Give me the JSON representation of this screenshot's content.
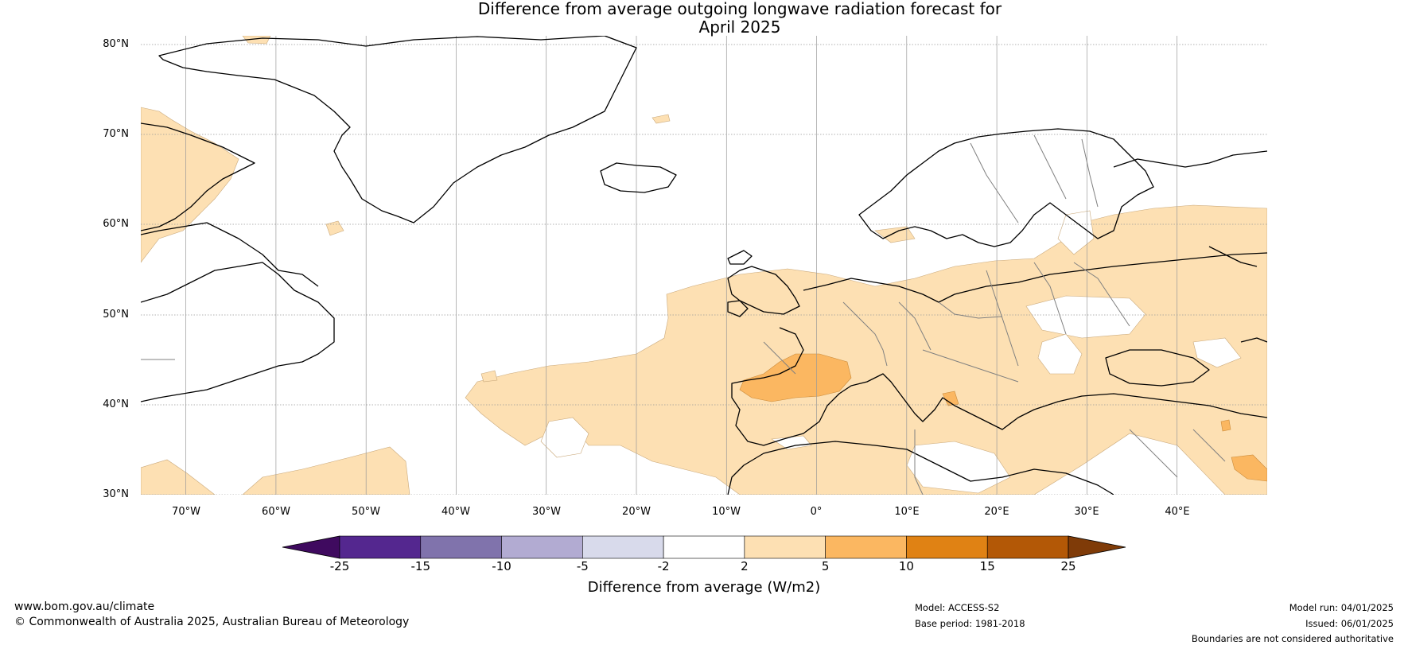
{
  "title": {
    "line1": "Difference from average outgoing longwave radiation forecast for",
    "line2": "April 2025"
  },
  "map": {
    "lat_labels": [
      "80°N",
      "70°N",
      "60°N",
      "50°N",
      "40°N",
      "30°N"
    ],
    "lon_labels": [
      "70°W",
      "60°W",
      "50°W",
      "40°W",
      "30°W",
      "20°W",
      "10°W",
      "0°",
      "10°E",
      "20°E",
      "30°E",
      "40°E"
    ],
    "colors": {
      "land_outline": "#000000",
      "border": "#808080",
      "anomaly_2_5": "#fde0b3",
      "anomaly_5_10": "#fbb761",
      "gridline": "#888888"
    }
  },
  "colorbar": {
    "ticks": [
      "-25",
      "-15",
      "-10",
      "-5",
      "-2",
      "2",
      "5",
      "10",
      "15",
      "25"
    ],
    "colors": [
      "#3f0a5f",
      "#54278f",
      "#8073ac",
      "#b2abd2",
      "#d8daeb",
      "#ffffff",
      "#fde0b3",
      "#fbb761",
      "#e08214",
      "#b35806",
      "#7f3b08"
    ],
    "label": "Difference from average (W/m2)"
  },
  "footer": {
    "website": "www.bom.gov.au/climate",
    "copyright": "© Commonwealth of Australia 2025, Australian Bureau of Meteorology",
    "model": "Model: ACCESS-S2",
    "base_period": "Base period: 1981-2018",
    "model_run": "Model run: 04/01/2025",
    "issued": "Issued: 06/01/2025",
    "disclaimer": "Boundaries are not considered authoritative"
  }
}
